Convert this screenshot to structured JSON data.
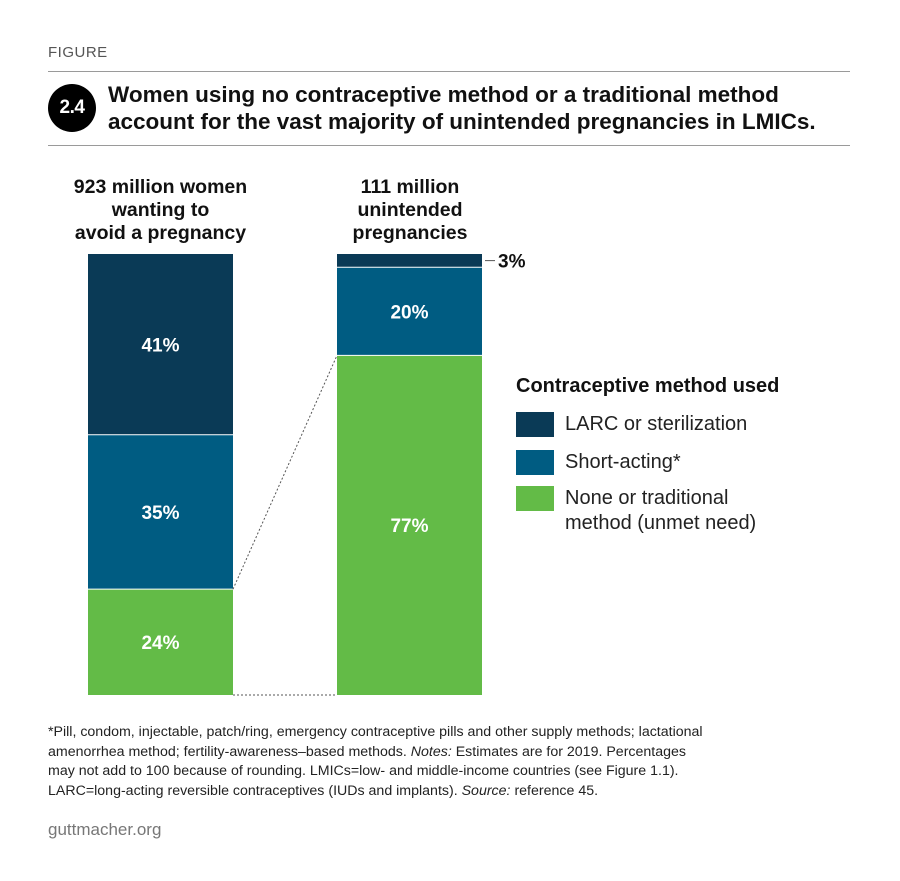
{
  "header": {
    "figure_label": "FIGURE",
    "figure_number": "2.4",
    "title_line1": "Women using no contraceptive method or a traditional method",
    "title_line2": "account for the vast majority of unintended pregnancies in LMICs."
  },
  "columns": {
    "left_heading": [
      "923 million women",
      "wanting to",
      "avoid a pregnancy"
    ],
    "right_heading": [
      "111 million",
      "unintended",
      "pregnancies"
    ]
  },
  "legend": {
    "title": "Contraceptive method used",
    "items": [
      {
        "label_lines": [
          "LARC or sterilization"
        ],
        "color": "#0a3a56"
      },
      {
        "label_lines": [
          "Short-acting*"
        ],
        "color": "#005c82"
      },
      {
        "label_lines": [
          "None or traditional",
          "method (unmet need)"
        ],
        "color": "#63bb47"
      }
    ]
  },
  "chart_data": {
    "type": "bar",
    "stacked": true,
    "percent": true,
    "categories": [
      "923 million women wanting to avoid a pregnancy",
      "111 million unintended pregnancies"
    ],
    "series": [
      {
        "name": "None or traditional method (unmet need)",
        "color": "#63bb47",
        "values": [
          24,
          77
        ],
        "labels": [
          "24%",
          "77%"
        ]
      },
      {
        "name": "Short-acting*",
        "color": "#005c82",
        "values": [
          35,
          20
        ],
        "labels": [
          "35%",
          "20%"
        ]
      },
      {
        "name": "LARC or sterilization",
        "color": "#0a3a56",
        "values": [
          41,
          3
        ],
        "labels": [
          "41%",
          "3%"
        ]
      }
    ],
    "outside_label_for": "LARC or sterilization"
  },
  "footnote": {
    "line1": "*Pill, condom, injectable, patch/ring, emergency contraceptive pills and other supply methods; lactational",
    "line2_text": "amenorrhea method; fertility-awareness–based methods. ",
    "line2_notes_label": "Notes:",
    "line2_rest": " Estimates are for 2019. Percentages",
    "line3": "may not add to 100 because of rounding. LMICs=low- and  middle-income countries (see Figure 1.1).",
    "line4_text": "LARC=long-acting reversible contraceptives (IUDs and implants). ",
    "line4_source_label": "Source:",
    "line4_rest": " reference 45."
  },
  "source_url": "guttmacher.org"
}
